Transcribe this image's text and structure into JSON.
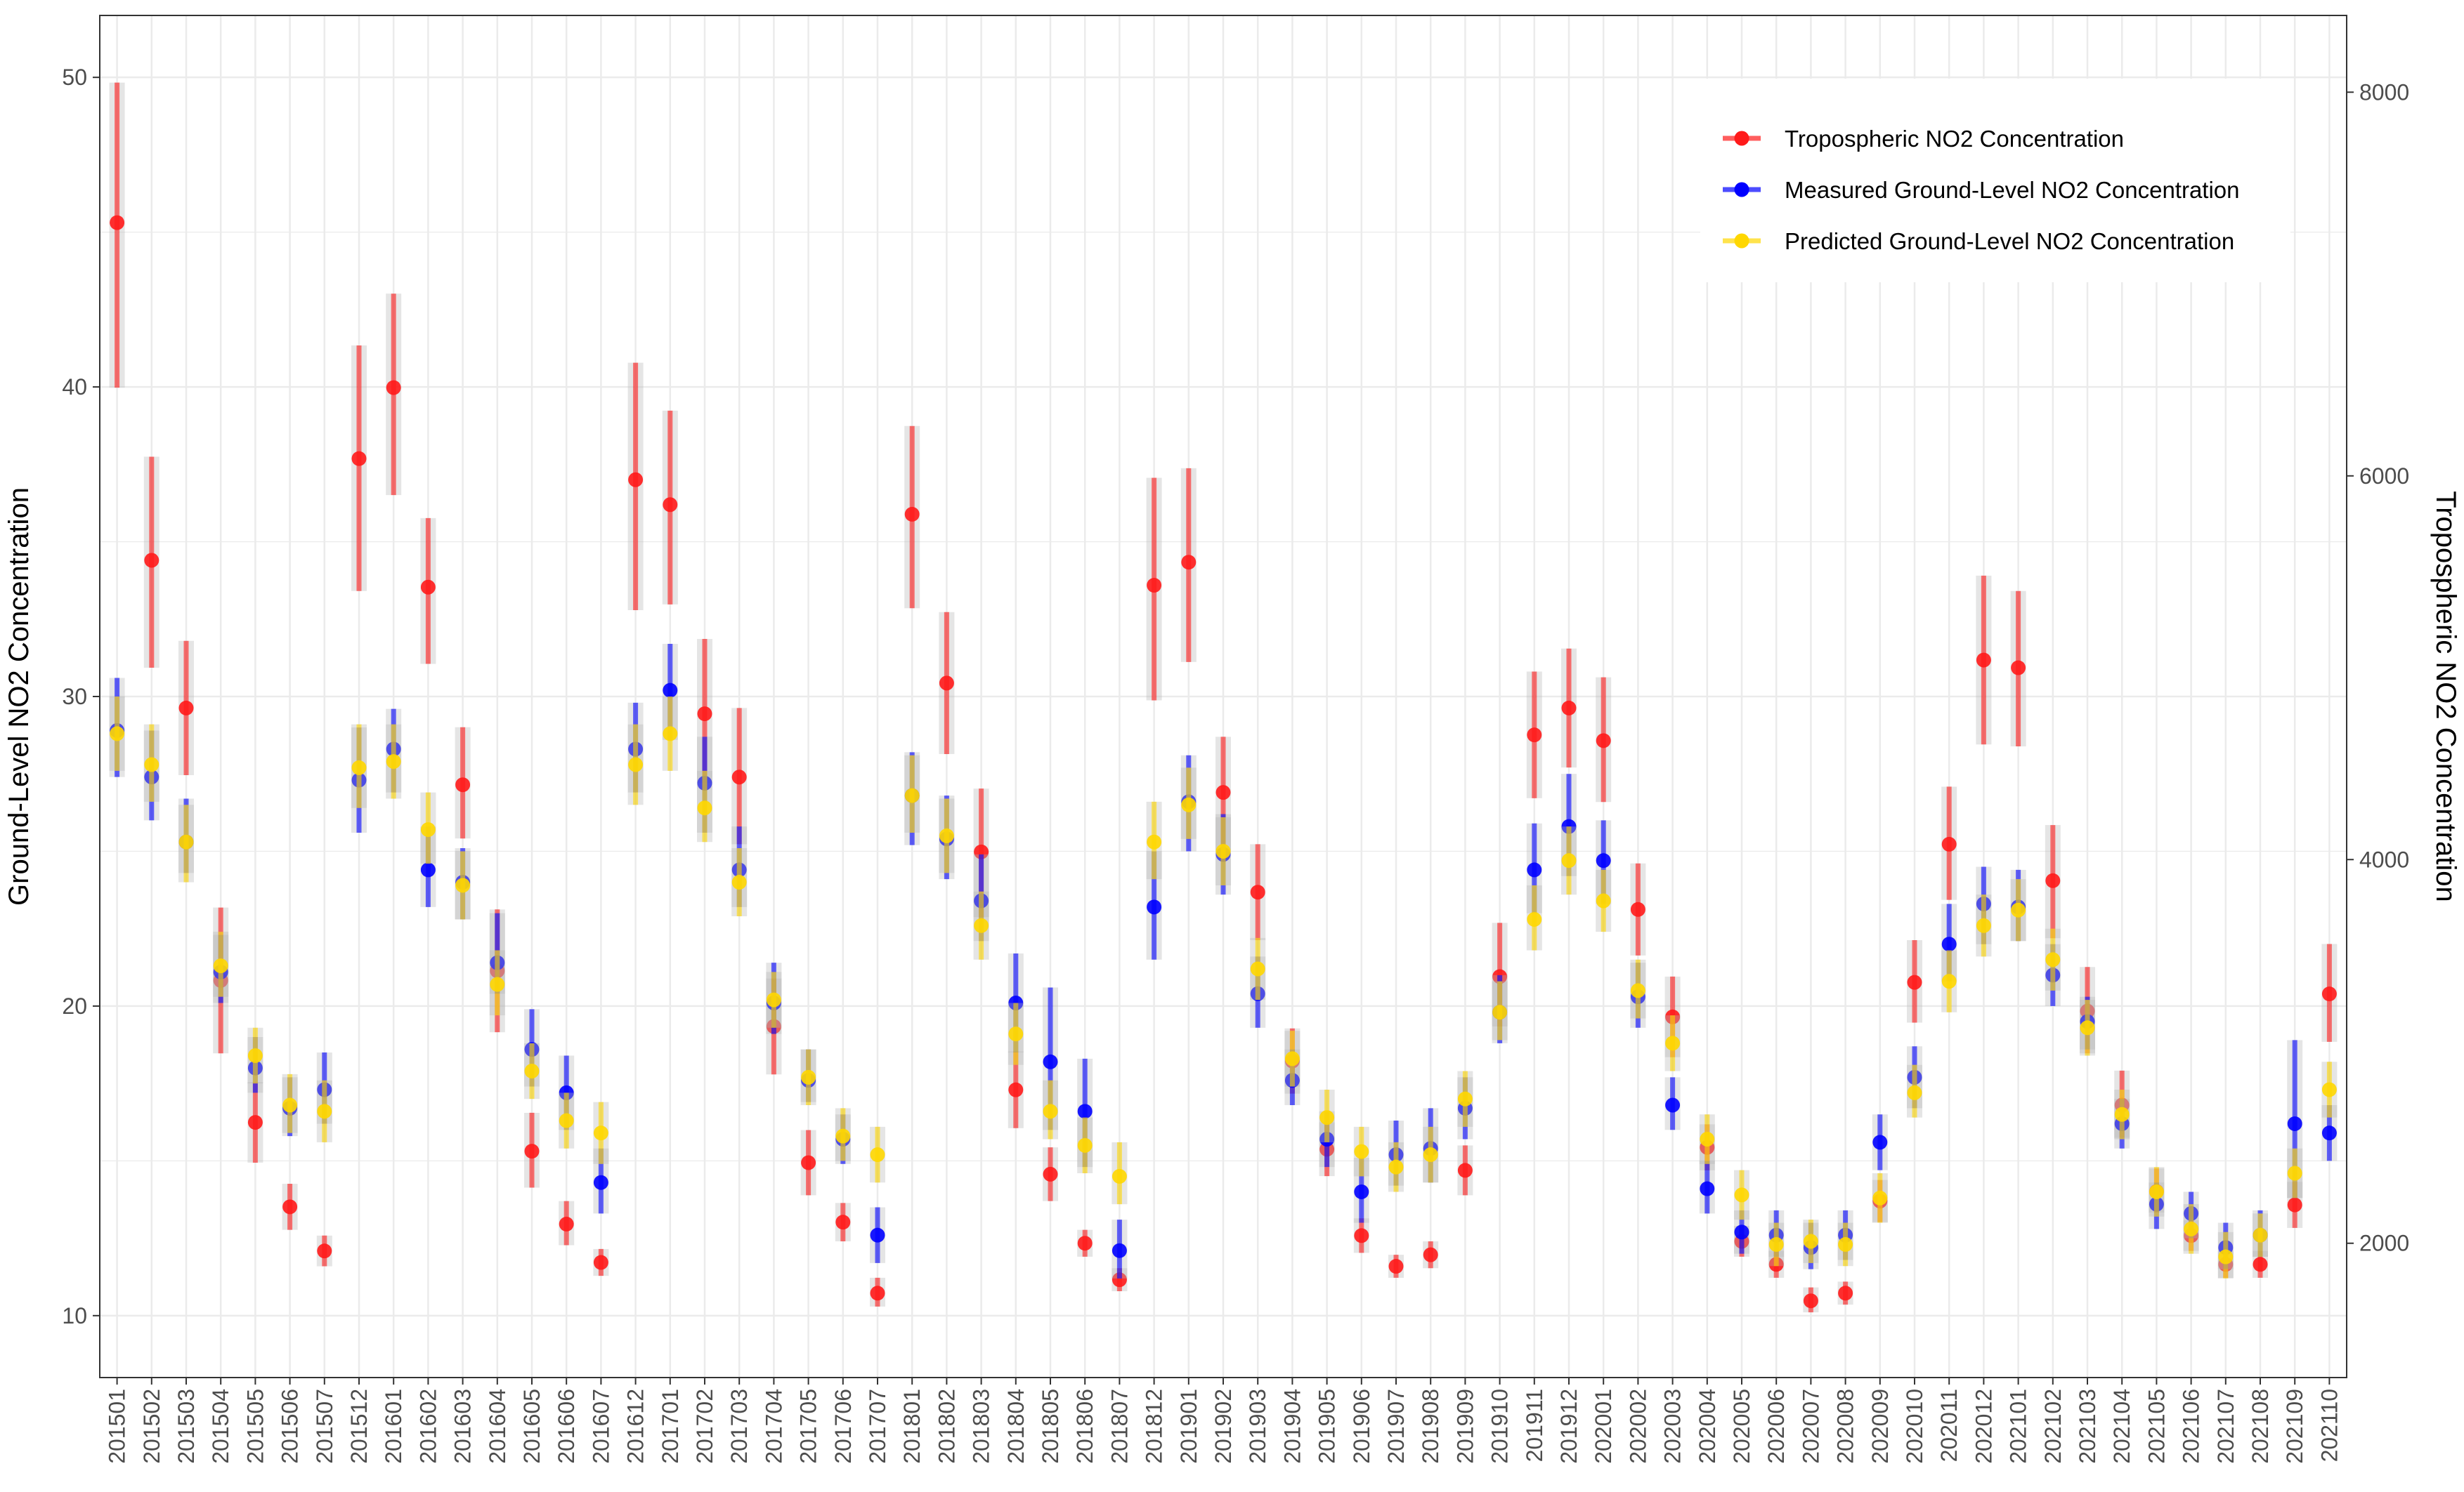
{
  "chart_data": {
    "type": "scatter",
    "subtype": "dual-axis point-range",
    "title": "",
    "xlabel": "",
    "ylabel_left": "Ground-Level NO2 Concentration",
    "ylabel_right": "Tropospheric NO2 Concentration",
    "ylim_left": [
      8,
      52
    ],
    "ylim_right": [
      1300,
      8400
    ],
    "yticks_left": [
      10,
      20,
      30,
      40,
      50
    ],
    "yticks_right": [
      2000,
      4000,
      6000,
      8000
    ],
    "grid": true,
    "legend_position": "top-right",
    "categories": [
      "201501",
      "201502",
      "201503",
      "201504",
      "201505",
      "201506",
      "201507",
      "201512",
      "201601",
      "201602",
      "201603",
      "201604",
      "201605",
      "201606",
      "201607",
      "201612",
      "201701",
      "201702",
      "201703",
      "201704",
      "201705",
      "201706",
      "201707",
      "201801",
      "201802",
      "201803",
      "201804",
      "201805",
      "201806",
      "201807",
      "201812",
      "201901",
      "201902",
      "201903",
      "201904",
      "201905",
      "201906",
      "201907",
      "201908",
      "201909",
      "201910",
      "201911",
      "201912",
      "202001",
      "202002",
      "202003",
      "202004",
      "202005",
      "202006",
      "202007",
      "202008",
      "202009",
      "202010",
      "202011",
      "202012",
      "202101",
      "202102",
      "202103",
      "202104",
      "202105",
      "202106",
      "202107",
      "202108",
      "202109",
      "202110"
    ],
    "series": [
      {
        "name": "Tropospheric NO2 Concentration",
        "axis": "right",
        "color": "#ff1a1a",
        "values": [
          7320,
          5560,
          4790,
          3370,
          2630,
          2190,
          1960,
          6090,
          6460,
          5420,
          4390,
          3420,
          2480,
          2100,
          1900,
          5980,
          5850,
          4760,
          4430,
          3130,
          2420,
          2110,
          1740,
          5800,
          4920,
          4040,
          2800,
          2360,
          2000,
          1810,
          5430,
          5550,
          4350,
          3830,
          2950,
          2490,
          2040,
          1880,
          1940,
          2380,
          3390,
          4650,
          4790,
          4620,
          3740,
          3180,
          2500,
          2010,
          1890,
          1700,
          1740,
          2220,
          3360,
          4080,
          5040,
          5000,
          3890,
          3210,
          2720,
          2270,
          2040,
          1890,
          1890,
          2200,
          3300
        ],
        "low": [
          6460,
          5000,
          4440,
          2990,
          2420,
          2070,
          1880,
          5400,
          5900,
          5020,
          4110,
          3100,
          2290,
          1990,
          1830,
          5300,
          5330,
          4400,
          4080,
          2880,
          2250,
          2010,
          1670,
          5310,
          4550,
          3700,
          2600,
          2220,
          1930,
          1750,
          4830,
          5030,
          4050,
          3580,
          2780,
          2350,
          1950,
          1820,
          1870,
          2250,
          3130,
          4320,
          4480,
          4300,
          3500,
          2970,
          2380,
          1930,
          1820,
          1640,
          1680,
          2110,
          3150,
          3790,
          4600,
          4590,
          3590,
          2990,
          2550,
          2160,
          1960,
          1820,
          1820,
          2080,
          3050
        ],
        "high": [
          8050,
          6100,
          5140,
          3750,
          2840,
          2310,
          2040,
          6680,
          6950,
          5780,
          4690,
          3740,
          2680,
          2220,
          1970,
          6590,
          6340,
          5150,
          4790,
          3380,
          2590,
          2210,
          1820,
          6260,
          5290,
          4370,
          3000,
          2500,
          2070,
          1870,
          5990,
          6040,
          4640,
          4080,
          3120,
          2630,
          2130,
          1940,
          2010,
          2510,
          3670,
          4980,
          5100,
          4950,
          3980,
          3390,
          2620,
          2090,
          1960,
          1770,
          1800,
          2330,
          3580,
          4380,
          5480,
          5400,
          4180,
          3440,
          2900,
          2390,
          2120,
          1960,
          1960,
          2320,
          3560
        ]
      },
      {
        "name": "Measured Ground-Level NO2 Concentration",
        "axis": "left",
        "color": "#0000ff",
        "values": [
          28.9,
          27.4,
          25.3,
          21.1,
          18.0,
          16.7,
          17.3,
          27.3,
          28.3,
          24.4,
          24.0,
          21.4,
          18.6,
          17.2,
          14.3,
          28.3,
          30.2,
          27.2,
          24.4,
          20.1,
          17.6,
          15.7,
          12.6,
          26.8,
          25.4,
          23.4,
          20.1,
          18.2,
          16.6,
          12.1,
          23.2,
          26.6,
          24.9,
          20.4,
          17.6,
          15.7,
          14.0,
          15.2,
          15.4,
          16.7,
          19.8,
          24.4,
          25.8,
          24.7,
          20.3,
          16.8,
          14.1,
          12.7,
          12.6,
          12.2,
          12.6,
          15.6,
          17.7,
          22.0,
          23.3,
          23.2,
          21.0,
          19.5,
          16.2,
          13.6,
          13.3,
          12.2,
          12.6,
          16.2,
          15.9
        ],
        "low": [
          27.4,
          26.0,
          24.3,
          20.1,
          17.2,
          15.8,
          16.2,
          25.6,
          26.9,
          23.2,
          22.8,
          20.4,
          17.4,
          16.0,
          13.3,
          26.9,
          28.6,
          25.6,
          23.2,
          19.1,
          16.9,
          14.9,
          11.7,
          25.2,
          24.1,
          22.1,
          18.5,
          16.0,
          14.8,
          11.2,
          21.5,
          25.0,
          23.6,
          19.3,
          16.8,
          14.8,
          13.0,
          14.2,
          14.3,
          15.7,
          18.8,
          23.0,
          24.2,
          23.3,
          19.3,
          16.0,
          13.3,
          12.0,
          11.9,
          11.5,
          11.8,
          14.7,
          16.7,
          20.8,
          22.0,
          22.1,
          20.0,
          18.6,
          15.4,
          12.8,
          12.5,
          11.5,
          11.9,
          13.8,
          15.0
        ],
        "high": [
          30.6,
          28.9,
          26.7,
          22.3,
          19.0,
          17.7,
          18.5,
          29.0,
          29.6,
          25.8,
          25.1,
          23.0,
          19.9,
          18.4,
          15.4,
          29.8,
          31.7,
          28.7,
          25.8,
          21.4,
          18.6,
          16.5,
          13.5,
          28.2,
          26.8,
          24.9,
          21.7,
          20.6,
          18.3,
          13.1,
          25.0,
          28.1,
          26.2,
          21.6,
          18.6,
          16.6,
          15.1,
          16.3,
          16.7,
          17.7,
          21.0,
          25.9,
          27.5,
          26.0,
          21.4,
          17.7,
          15.0,
          13.4,
          13.4,
          13.0,
          13.4,
          16.5,
          18.7,
          23.3,
          24.5,
          24.4,
          22.0,
          20.3,
          17.0,
          14.3,
          14.0,
          13.0,
          13.4,
          18.9,
          16.8
        ]
      },
      {
        "name": "Predicted Ground-Level NO2 Concentration",
        "axis": "left",
        "color": "#ffd700",
        "values": [
          28.8,
          27.8,
          25.3,
          21.3,
          18.4,
          16.8,
          16.6,
          27.7,
          27.9,
          25.7,
          23.9,
          20.7,
          17.9,
          16.3,
          15.9,
          27.8,
          28.8,
          26.4,
          24.0,
          20.2,
          17.7,
          15.8,
          15.2,
          26.8,
          25.5,
          22.6,
          19.1,
          16.6,
          15.5,
          14.5,
          25.3,
          26.5,
          25.0,
          21.2,
          18.3,
          16.4,
          15.3,
          14.8,
          15.2,
          17.0,
          19.8,
          22.8,
          24.7,
          23.4,
          20.5,
          18.8,
          15.7,
          13.9,
          12.3,
          12.4,
          12.3,
          13.8,
          17.2,
          20.8,
          22.6,
          23.1,
          21.5,
          19.3,
          16.5,
          14.0,
          12.8,
          11.9,
          12.6,
          14.6,
          17.3
        ],
        "low": [
          27.6,
          26.6,
          24.0,
          20.3,
          17.5,
          15.9,
          15.6,
          26.4,
          26.7,
          24.6,
          22.8,
          19.7,
          17.0,
          15.4,
          14.9,
          26.5,
          27.6,
          25.3,
          22.9,
          19.3,
          16.8,
          15.0,
          14.3,
          25.6,
          24.3,
          21.5,
          18.1,
          15.7,
          14.6,
          13.6,
          24.1,
          25.4,
          23.9,
          20.2,
          17.4,
          15.6,
          14.5,
          14.0,
          14.3,
          16.1,
          18.9,
          21.8,
          23.6,
          22.4,
          19.6,
          17.9,
          14.9,
          13.1,
          11.6,
          11.7,
          11.6,
          13.0,
          16.4,
          19.8,
          21.6,
          22.1,
          20.5,
          18.4,
          15.7,
          13.2,
          12.0,
          11.2,
          11.9,
          13.8,
          16.4
        ],
        "high": [
          30.0,
          29.1,
          26.5,
          22.4,
          19.3,
          17.8,
          17.6,
          29.1,
          29.1,
          26.9,
          25.0,
          21.8,
          18.8,
          17.2,
          16.9,
          29.1,
          30.0,
          27.6,
          25.1,
          21.1,
          18.6,
          16.7,
          16.1,
          28.1,
          26.7,
          23.7,
          20.1,
          17.6,
          16.4,
          15.6,
          26.6,
          27.7,
          26.1,
          22.2,
          19.2,
          17.3,
          16.1,
          15.6,
          16.1,
          17.9,
          20.8,
          23.9,
          25.8,
          24.4,
          21.5,
          19.7,
          16.5,
          14.7,
          13.0,
          13.1,
          13.0,
          14.6,
          18.1,
          21.8,
          23.6,
          24.1,
          22.5,
          20.2,
          17.3,
          14.8,
          13.6,
          12.7,
          13.3,
          15.4,
          18.2
        ]
      }
    ]
  }
}
